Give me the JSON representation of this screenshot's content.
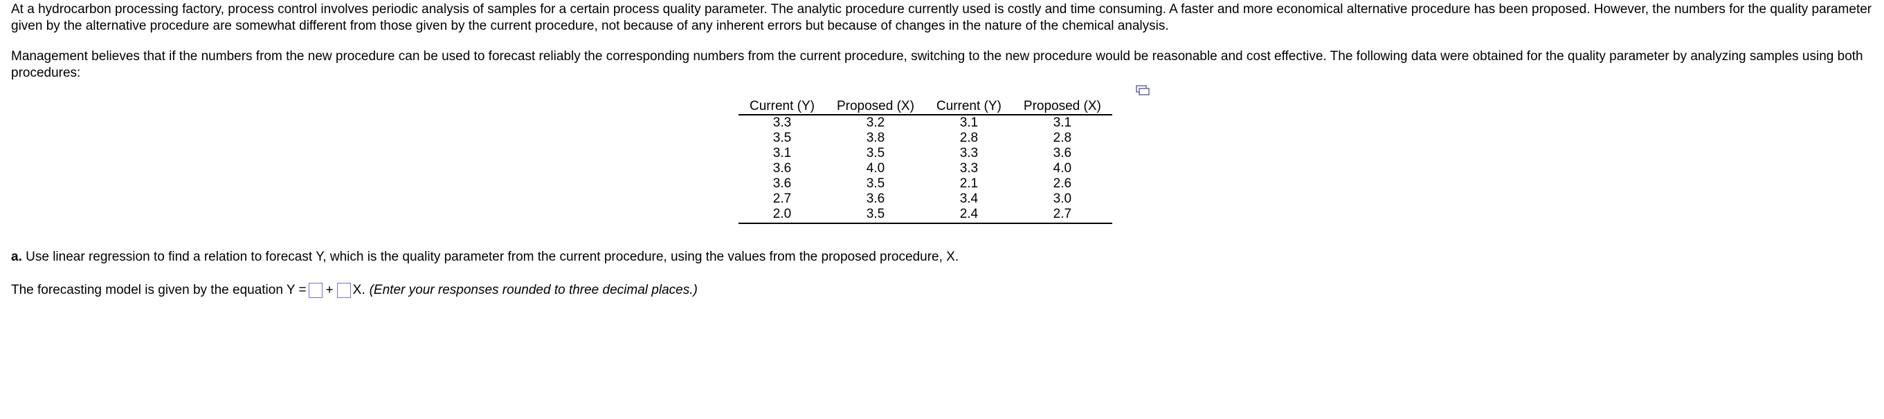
{
  "intro": "At a hydrocarbon processing factory, process control involves periodic analysis of samples for a certain process quality parameter. The analytic procedure currently used is costly and time consuming. A faster and more economical alternative procedure has been proposed. However, the numbers for the quality parameter given by the alternative procedure are somewhat different from those given by the current procedure, not because of any inherent errors but because of changes in the nature of the chemical analysis.",
  "management": "Management believes that if the numbers from the new procedure can be used to forecast reliably the corresponding numbers from the current procedure, switching to the new procedure would be reasonable and cost effective. The following data were obtained for the quality parameter by analyzing samples using both procedures:",
  "copy_icon": "copy-table-icon",
  "table": {
    "headers": [
      "Current (Y)",
      "Proposed (X)",
      "Current (Y)",
      "Proposed (X)"
    ],
    "rows": [
      [
        "3.3",
        "3.2",
        "3.1",
        "3.1"
      ],
      [
        "3.5",
        "3.8",
        "2.8",
        "2.8"
      ],
      [
        "3.1",
        "3.5",
        "3.3",
        "3.6"
      ],
      [
        "3.6",
        "4.0",
        "3.3",
        "4.0"
      ],
      [
        "3.6",
        "3.5",
        "2.1",
        "2.6"
      ],
      [
        "2.7",
        "3.6",
        "3.4",
        "3.0"
      ],
      [
        "2.0",
        "3.5",
        "2.4",
        "2.7"
      ]
    ]
  },
  "question_a": {
    "label": "a.",
    "text": "Use linear regression to find a relation to forecast Y, which is the quality parameter from the current procedure, using the values from the proposed procedure, X."
  },
  "equation": {
    "prefix": "The forecasting model is given by the equation Y =",
    "plus": "+",
    "suffix": "X.",
    "note": "(Enter your responses rounded to three decimal places.)",
    "intercept_value": "",
    "slope_value": ""
  },
  "colors": {
    "answer_box_border": "#7b6ec9",
    "icon": "#6f6fb0"
  }
}
